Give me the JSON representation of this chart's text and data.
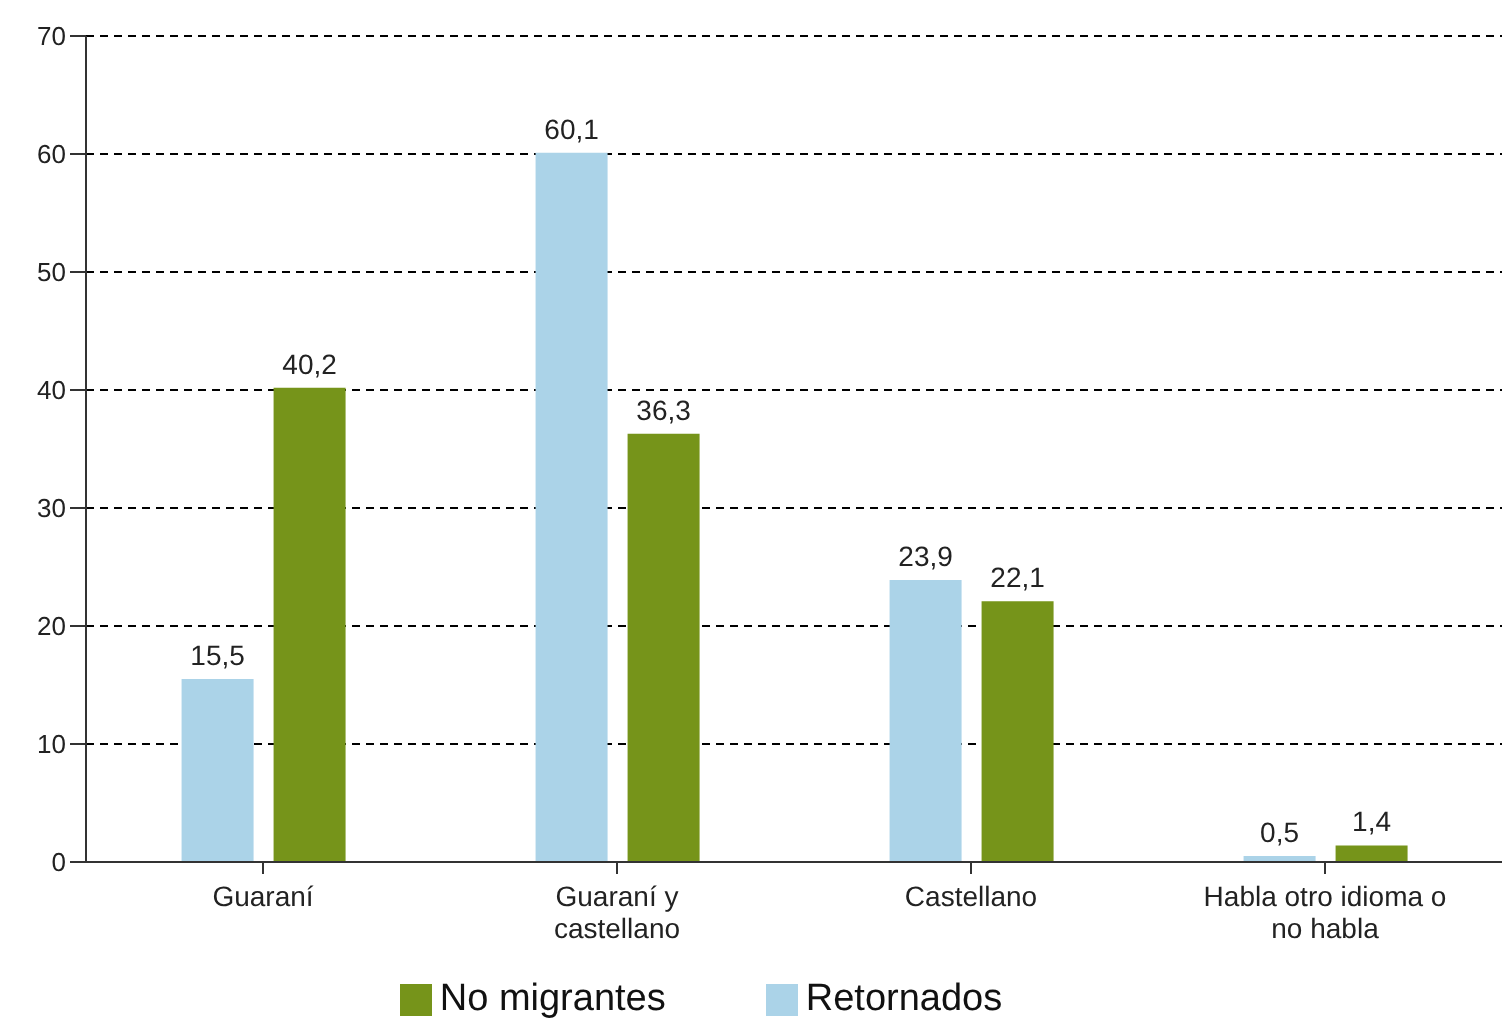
{
  "chart_data": {
    "type": "bar",
    "categories": [
      "Guaraní",
      "Guaraní y castellano",
      "Castellano",
      "Habla otro idioma o no habla"
    ],
    "series": [
      {
        "name": "Retornados",
        "color": "#abd3e8",
        "values": [
          15.5,
          60.1,
          23.9,
          0.5
        ],
        "value_labels": [
          "15,5",
          "60,1",
          "23,9",
          "0,5"
        ]
      },
      {
        "name": "No migrantes",
        "color": "#76941a",
        "values": [
          40.2,
          36.3,
          22.1,
          1.4
        ],
        "value_labels": [
          "40,2",
          "36,3",
          "22,1",
          "1,4"
        ]
      }
    ],
    "ylim": [
      0,
      70
    ],
    "yticks": [
      0,
      10,
      20,
      30,
      40,
      50,
      60,
      70
    ],
    "grid": "y",
    "legend": "bottom"
  }
}
